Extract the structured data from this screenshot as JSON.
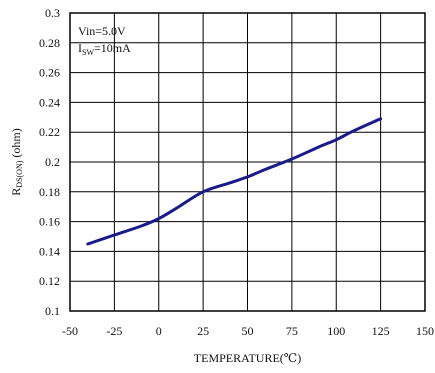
{
  "chart_data": {
    "type": "line",
    "xlabel": "TEMPERATURE(℃)",
    "ylabel_main": "R",
    "ylabel_sub": "DS(ON)",
    "ylabel_unit": " (ohm)",
    "xlim": [
      -50,
      150
    ],
    "ylim": [
      0.1,
      0.3
    ],
    "x_ticks": [
      -50,
      -25,
      0,
      25,
      50,
      75,
      100,
      125,
      150
    ],
    "y_ticks": [
      0.1,
      0.12,
      0.14,
      0.16,
      0.18,
      0.2,
      0.22,
      0.24,
      0.26,
      0.28,
      0.3
    ],
    "x_tick_labels": [
      "-50",
      "-25",
      "0",
      "25",
      "50",
      "75",
      "100",
      "125",
      "150"
    ],
    "y_tick_labels": [
      "0.1",
      "0.12",
      "0.14",
      "0.16",
      "0.18",
      "0.2",
      "0.22",
      "0.24",
      "0.26",
      "0.28",
      "0.3"
    ],
    "grid": true,
    "annotation": {
      "line1": "Vin=5.0V",
      "line2_main": "I",
      "line2_sub": "SW",
      "line2_rest": "=10mA"
    },
    "series": [
      {
        "color": "#1a1a8c",
        "x": [
          -40,
          -25,
          -10,
          0,
          10,
          25,
          40,
          50,
          60,
          75,
          90,
          100,
          110,
          125
        ],
        "y": [
          0.145,
          0.151,
          0.157,
          0.162,
          0.169,
          0.18,
          0.186,
          0.19,
          0.195,
          0.202,
          0.21,
          0.215,
          0.221,
          0.229
        ]
      }
    ]
  }
}
